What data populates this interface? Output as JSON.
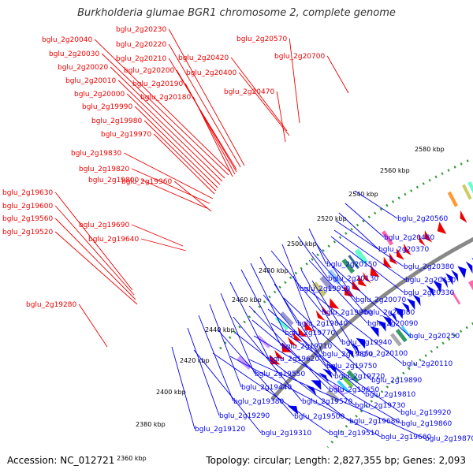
{
  "title": "Burkholderia glumae BGR1 chromosome 2, complete genome",
  "accession_text": "Accession: NC_012721",
  "summary_text": "Topology: circular; Length: 2,827,355 bp; Genes: 2,093",
  "colors": {
    "forward": "#ee0000",
    "reverse": "#0000ee",
    "backbone": "#888888",
    "dots": "#339933"
  },
  "ticks": [
    "2360 kbp",
    "2380 kbp",
    "2400 kbp",
    "2420 kbp",
    "2440 kbp",
    "2460 kbp",
    "2480 kbp",
    "2500 kbp",
    "2520 kbp",
    "2540 kbp",
    "2560 kbp",
    "2580 kbp"
  ],
  "forward_labels": [
    "bglu_2g20230",
    "bglu_2g20040",
    "bglu_2g20220",
    "bglu_2g20030",
    "bglu_2g20210",
    "bglu_2g20020",
    "bglu_2g20200",
    "bglu_2g20010",
    "bglu_2g20190",
    "bglu_2g20000",
    "bglu_2g20180",
    "bglu_2g19990",
    "bglu_2g19980",
    "bglu_2g19970",
    "bglu_2g19830",
    "bglu_2g19820",
    "bglu_2g19800",
    "bglu_2g19960",
    "bglu_2g19630",
    "bglu_2g19600",
    "bglu_2g19560",
    "bglu_2g19520",
    "bglu_2g19690",
    "bglu_2g19640",
    "bglu_2g19280",
    "bglu_2g20570",
    "bglu_2g20700",
    "bglu_2g20420",
    "bglu_2g20400",
    "bglu_2g20470"
  ],
  "reverse_labels": [
    "bglu_2g20560",
    "bglu_2g20480",
    "bglu_2g20370",
    "bglu_2g20380",
    "bglu_2g20150",
    "bglu_2g20430",
    "bglu_2g20130",
    "bglu_2g20330",
    "bglu_2g19950",
    "bglu_2g20070",
    "bglu_2g19900",
    "bglu_2g20080",
    "bglu_2g19840",
    "bglu_2g20090",
    "bglu_2g19770",
    "bglu_2g20250",
    "bglu_2g19710",
    "bglu_2g19940",
    "bglu_2g19850",
    "bglu_2g20100",
    "bglu_2g19620",
    "bglu_2g19750",
    "bglu_2g20110",
    "bglu_2g19550",
    "bglu_2g19720",
    "bglu_2g19890",
    "bglu_2g19440",
    "bglu_2g19650",
    "bglu_2g19810",
    "bglu_2g19380",
    "bglu_2g19570",
    "bglu_2g19730",
    "bglu_2g19920",
    "bglu_2g19290",
    "bglu_2g19500",
    "bglu_2g19680",
    "bglu_2g19860",
    "bglu_2g19120",
    "bglu_2g19310",
    "bglu_2g19510",
    "bglu_2g19660",
    "bglu_2g19870"
  ]
}
